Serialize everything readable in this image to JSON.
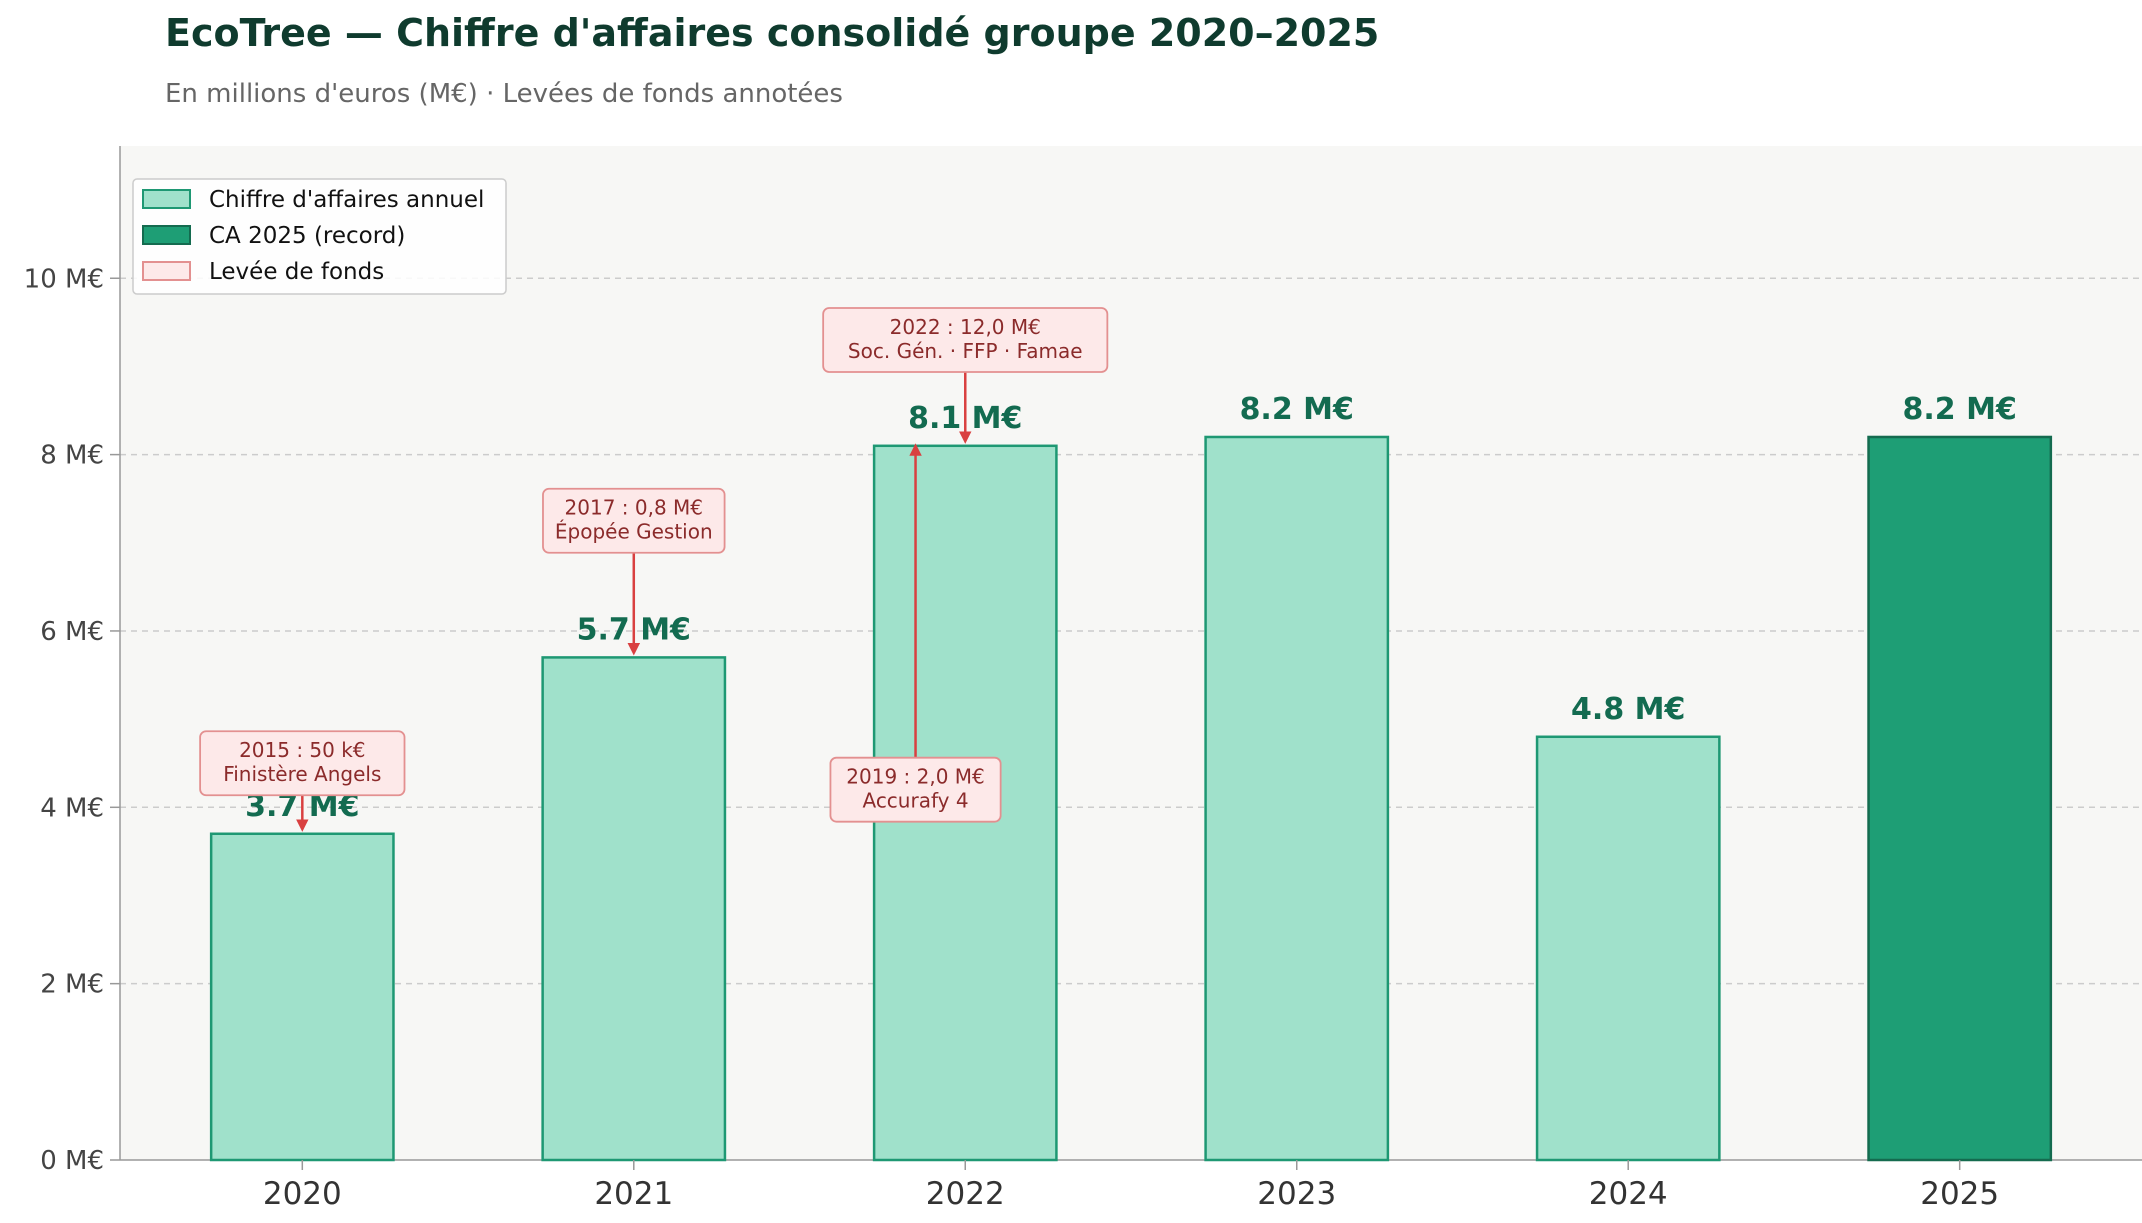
{
  "chart_data": {
    "type": "bar",
    "title": "EcoTree — Chiffre d'affaires consolidé groupe 2020–2025",
    "subtitle": "En millions d'euros (M€) · Levées de fonds annotées",
    "xlabel": "",
    "ylabel": "",
    "unit": "M€",
    "categories": [
      "2020",
      "2021",
      "2022",
      "2023",
      "2024",
      "2025"
    ],
    "values": [
      3.7,
      5.7,
      8.1,
      8.2,
      4.8,
      8.2
    ],
    "value_labels": [
      "3.7 M€",
      "5.7 M€",
      "8.1 M€",
      "8.2 M€",
      "4.8 M€",
      "8.2 M€"
    ],
    "highlight_index": 5,
    "ylim": [
      0,
      11.5
    ],
    "yticks": [
      0,
      2,
      4,
      6,
      8,
      10
    ],
    "ytick_labels": [
      "0 M€",
      "2 M€",
      "4 M€",
      "6 M€",
      "8 M€",
      "10 M€"
    ],
    "grid": true,
    "legend_position": "top-left",
    "legend": [
      {
        "label": "Chiffre d'affaires annuel",
        "kind": "bar"
      },
      {
        "label": "CA 2025 (record)",
        "kind": "highlight"
      },
      {
        "label": "Levée de fonds",
        "kind": "funding"
      }
    ],
    "annotations": [
      {
        "category": "2020",
        "lines": [
          "2015 : 50 k€",
          "Finistère Angels"
        ],
        "box_y": 4.5,
        "arrow_to": 3.75
      },
      {
        "category": "2021",
        "lines": [
          "2017 : 0,8 M€",
          "Épopée Gestion"
        ],
        "box_y": 7.25,
        "arrow_to": 5.75
      },
      {
        "category": "2022",
        "lines": [
          "2022 : 12,0 M€",
          "Soc. Gén. · FFP · Famae"
        ],
        "box_y": 9.3,
        "arrow_to": 8.15
      },
      {
        "category": "2022",
        "lines": [
          "2019 : 2,0 M€",
          "Accurafy 4"
        ],
        "box_y": 4.2,
        "arrow_to": 8.1,
        "offset": -0.15,
        "direction": "up"
      }
    ],
    "colors": {
      "bar_fill": "#a0e1cb",
      "bar_edge": "#1e9873",
      "highlight_fill": "#1e9e75",
      "highlight_edge": "#146b4f",
      "value_label": "#136b50",
      "title": "#0f3b2e",
      "subtitle": "#666666",
      "plot_bg": "#f7f7f5",
      "grid": "#cccccc",
      "axis": "#999999",
      "tick_label": "#444444",
      "annotation_fill": "#fde9e9",
      "annotation_edge": "#e39090",
      "annotation_text": "#8b2b2b",
      "arrow": "#d94040"
    }
  }
}
